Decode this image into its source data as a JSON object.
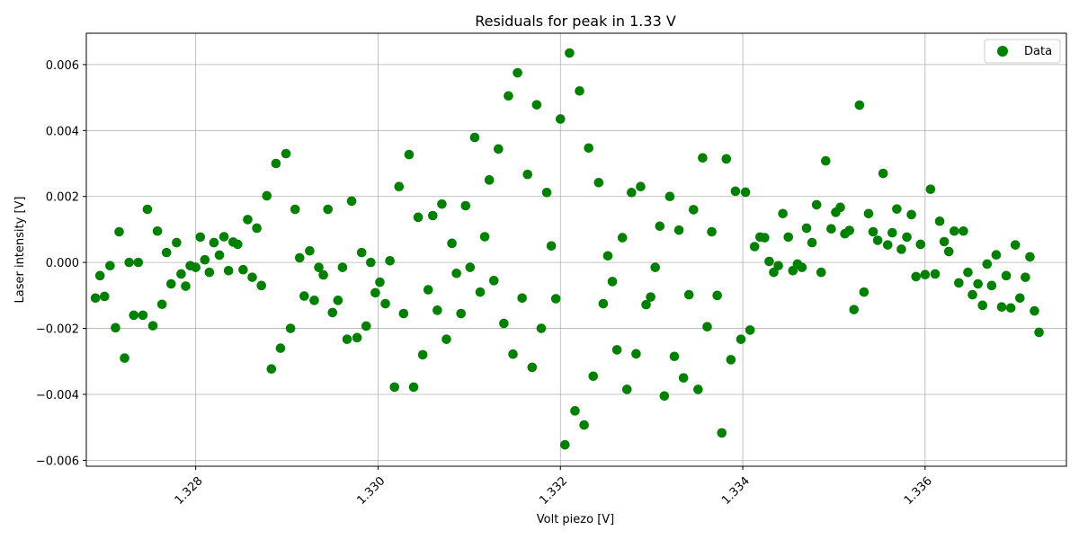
{
  "chart_data": {
    "type": "scatter",
    "title": "Residuals for peak in 1.33 V",
    "xlabel": "Volt piezo [V]",
    "ylabel": "Laser intensity [V]",
    "xlim": [
      1.3268,
      1.33755
    ],
    "ylim": [
      -0.00618,
      0.00695
    ],
    "grid": true,
    "legend_position": "top-right",
    "marker_color": "#008000",
    "x_ticks": [
      {
        "value": 1.328,
        "label": "1.328"
      },
      {
        "value": 1.33,
        "label": "1.330"
      },
      {
        "value": 1.332,
        "label": "1.332"
      },
      {
        "value": 1.334,
        "label": "1.334"
      },
      {
        "value": 1.336,
        "label": "1.336"
      }
    ],
    "y_ticks": [
      {
        "value": 0.006,
        "label": "0.006"
      },
      {
        "value": 0.004,
        "label": "0.004"
      },
      {
        "value": 0.002,
        "label": "0.002"
      },
      {
        "value": 0.0,
        "label": "0.000"
      },
      {
        "value": -0.002,
        "label": "−0.002"
      },
      {
        "value": -0.004,
        "label": "−0.004"
      },
      {
        "value": -0.006,
        "label": "−0.006"
      }
    ],
    "series": [
      {
        "name": "Data",
        "color": "#008000",
        "x": [
          1.3269,
          1.32695,
          1.327,
          1.32706,
          1.32712,
          1.32716,
          1.32722,
          1.32727,
          1.32732,
          1.32737,
          1.32742,
          1.32747,
          1.32753,
          1.32758,
          1.32763,
          1.32768,
          1.32773,
          1.32779,
          1.32784,
          1.32789,
          1.32794,
          1.328,
          1.32805,
          1.3281,
          1.32815,
          1.3282,
          1.32826,
          1.32831,
          1.32836,
          1.32841,
          1.32846,
          1.32852,
          1.32857,
          1.32862,
          1.32867,
          1.32872,
          1.32878,
          1.32883,
          1.32888,
          1.32893,
          1.32899,
          1.32904,
          1.32909,
          1.32914,
          1.32919,
          1.32925,
          1.3293,
          1.32935,
          1.3294,
          1.32945,
          1.3295,
          1.32956,
          1.32961,
          1.32966,
          1.32971,
          1.32977,
          1.32982,
          1.32987,
          1.32992,
          1.32997,
          1.33002,
          1.33008,
          1.33013,
          1.33018,
          1.33023,
          1.33028,
          1.33034,
          1.33039,
          1.33044,
          1.33049,
          1.33055,
          1.3306,
          1.33065,
          1.3307,
          1.33075,
          1.33081,
          1.33086,
          1.33091,
          1.33096,
          1.33101,
          1.33106,
          1.33112,
          1.33117,
          1.33122,
          1.33127,
          1.33132,
          1.33138,
          1.33143,
          1.33148,
          1.33153,
          1.33158,
          1.33164,
          1.33169,
          1.33174,
          1.33179,
          1.33185,
          1.3319,
          1.33195,
          1.332,
          1.33205,
          1.3321,
          1.33216,
          1.33221,
          1.33226,
          1.33231,
          1.33236,
          1.33242,
          1.33247,
          1.33252,
          1.33257,
          1.33262,
          1.33268,
          1.33273,
          1.33278,
          1.33283,
          1.33288,
          1.33294,
          1.33299,
          1.33304,
          1.33309,
          1.33314,
          1.3332,
          1.33325,
          1.3333,
          1.33335,
          1.33341,
          1.33346,
          1.33351,
          1.33356,
          1.33361,
          1.33366,
          1.33372,
          1.33377,
          1.33382,
          1.33387,
          1.33392,
          1.33398,
          1.33403,
          1.33408,
          1.33413,
          1.33419,
          1.33424,
          1.33429,
          1.33434,
          1.33439,
          1.33444,
          1.3345,
          1.33455,
          1.3346,
          1.33465,
          1.3347,
          1.33476,
          1.33481,
          1.33486,
          1.33491,
          1.33497,
          1.33502,
          1.33507,
          1.33512,
          1.33517,
          1.33522,
          1.33528,
          1.33533,
          1.33538,
          1.33543,
          1.33548,
          1.33554,
          1.33559,
          1.33564,
          1.33569,
          1.33574,
          1.3358,
          1.33585,
          1.3359,
          1.33595,
          1.336,
          1.33606,
          1.33611,
          1.33616,
          1.33621,
          1.33626,
          1.33632,
          1.33637,
          1.33642,
          1.33647,
          1.33652,
          1.33658,
          1.33663,
          1.33668,
          1.33673,
          1.33678,
          1.33684,
          1.33689,
          1.33694,
          1.33699,
          1.33704,
          1.3371,
          1.33715,
          1.3372,
          1.33725
        ],
        "y": [
          -0.00108,
          -0.0004,
          -0.00103,
          -0.0001,
          -0.00198,
          0.00093,
          -0.0029,
          0.0,
          -0.0016,
          0.0,
          -0.0016,
          0.00161,
          -0.00192,
          0.00095,
          -0.00127,
          0.0003,
          -0.00065,
          0.0006,
          -0.00035,
          -0.00072,
          -0.0001,
          -0.00015,
          0.00077,
          8e-05,
          -0.0003,
          0.0006,
          0.00022,
          0.00078,
          -0.00025,
          0.00062,
          0.00055,
          -0.00022,
          0.0013,
          -0.00045,
          0.00104,
          -0.0007,
          0.00202,
          -0.00323,
          0.003,
          -0.0026,
          0.0033,
          -0.002,
          0.00161,
          0.00014,
          -0.00102,
          0.00035,
          -0.00115,
          -0.00015,
          -0.00038,
          0.00161,
          -0.00152,
          -0.00115,
          -0.00015,
          -0.00233,
          0.00186,
          -0.00228,
          0.0003,
          -0.00193,
          0.0,
          -0.00092,
          -0.0006,
          -0.00125,
          5e-05,
          -0.00378,
          0.0023,
          -0.00155,
          0.00327,
          -0.00378,
          0.00137,
          -0.0028,
          -0.00083,
          0.00142,
          -0.00145,
          0.00177,
          -0.00233,
          0.00058,
          -0.00033,
          -0.00155,
          0.00172,
          -0.00015,
          0.00379,
          -0.0009,
          0.00078,
          0.0025,
          -0.00055,
          0.00344,
          -0.00185,
          0.00505,
          -0.00278,
          0.00575,
          -0.00108,
          0.00267,
          -0.00318,
          0.00478,
          -0.002,
          0.00212,
          0.0005,
          -0.0011,
          0.00435,
          -0.00553,
          0.00635,
          -0.0045,
          0.0052,
          -0.00493,
          0.00347,
          -0.00345,
          0.00242,
          -0.00125,
          0.0002,
          -0.00058,
          -0.00265,
          0.00075,
          -0.00385,
          0.00212,
          -0.00277,
          0.0023,
          -0.00128,
          -0.00105,
          -0.00015,
          0.0011,
          -0.00405,
          0.002,
          -0.00285,
          0.00098,
          -0.0035,
          -0.00098,
          0.0016,
          -0.00385,
          0.00317,
          -0.00195,
          0.00093,
          -0.001,
          -0.00517,
          0.00314,
          -0.00295,
          0.00216,
          -0.00233,
          0.00213,
          -0.00205,
          0.00048,
          0.00077,
          0.00075,
          3e-05,
          -0.0003,
          -0.0001,
          0.00148,
          0.00077,
          -0.00025,
          -5e-05,
          -0.00015,
          0.00104,
          0.0006,
          0.00175,
          -0.0003,
          0.00308,
          0.00102,
          0.00152,
          0.00167,
          0.00087,
          0.00097,
          -0.00143,
          0.00477,
          -0.0009,
          0.00148,
          0.00093,
          0.00067,
          0.0027,
          0.00053,
          0.0009,
          0.00162,
          0.0004,
          0.00077,
          0.00145,
          -0.00043,
          0.00055,
          -0.00037,
          0.00222,
          -0.00035,
          0.00125,
          0.00063,
          0.00033,
          0.00095,
          -0.00062,
          0.00095,
          -0.0003,
          -0.00098,
          -0.00065,
          -0.0013,
          -5e-05,
          -0.0007,
          0.00023,
          -0.00135,
          -0.0004,
          -0.00138,
          0.00053,
          -0.00108,
          -0.00045,
          0.00017,
          -0.00147,
          -0.00212
        ]
      }
    ]
  }
}
